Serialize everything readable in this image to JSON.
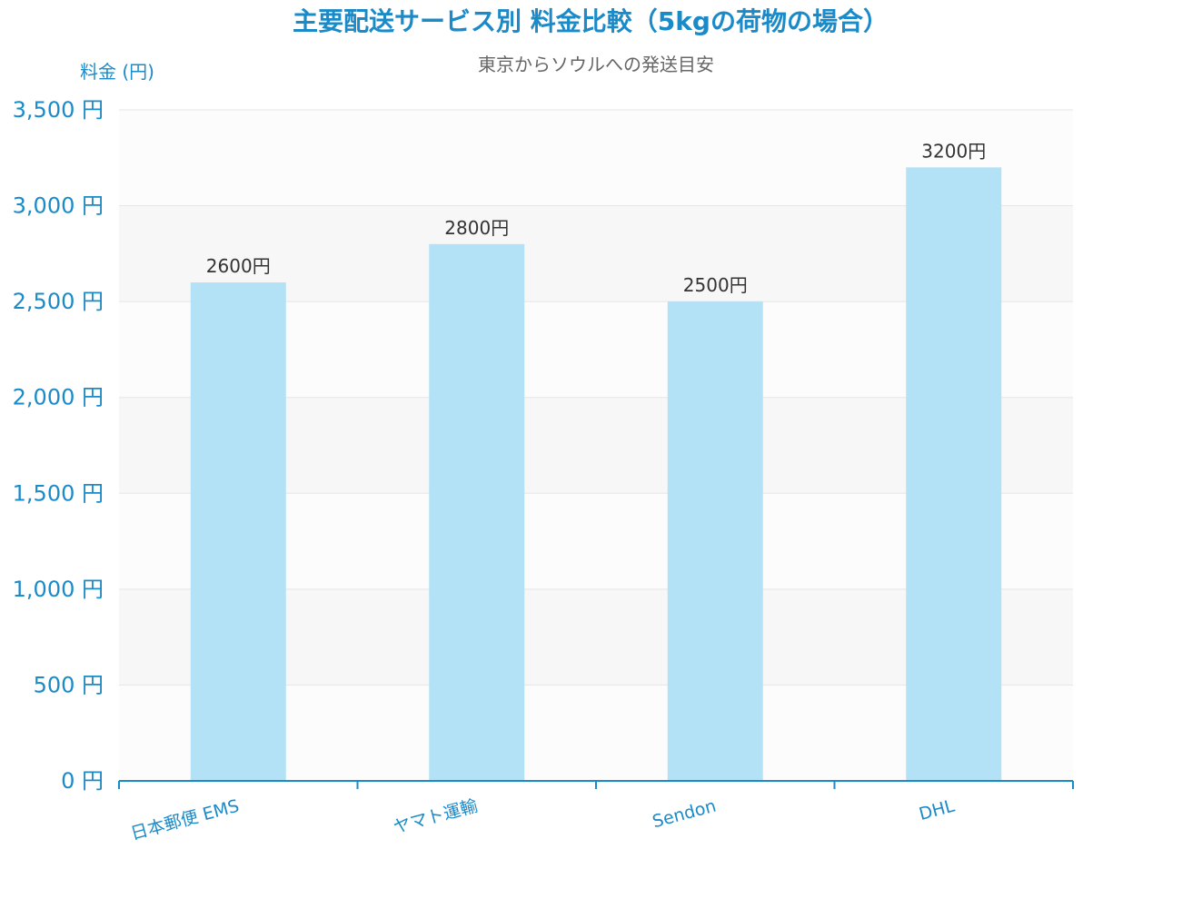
{
  "chart_data": {
    "type": "bar",
    "title": "主要配送サービス別 料金比較（5kgの荷物の場合）",
    "subtitle": "東京からソウルへの発送目安",
    "ylabel": "料金 (円)",
    "xlabel": "",
    "categories": [
      "日本郵便 EMS",
      "ヤマト運輸",
      "Sendon",
      "DHL"
    ],
    "values": [
      2600,
      2800,
      2500,
      3200
    ],
    "value_labels": [
      "2600円",
      "2800円",
      "2500円",
      "3200円"
    ],
    "ylim": [
      0,
      3500
    ],
    "yticks": [
      0,
      500,
      1000,
      1500,
      2000,
      2500,
      3000,
      3500
    ],
    "ytick_labels": [
      "0 円",
      "500 円",
      "1,000 円",
      "1,500 円",
      "2,000 円",
      "2,500 円",
      "3,000 円",
      "3,500 円"
    ],
    "grid": true,
    "alternating_bands": true,
    "colors": {
      "bar": "#b3e1f5",
      "text_accent": "#1a8ac8",
      "subtitle": "#666666",
      "data_label": "#333333",
      "grid": "#e6e6e6",
      "band": "#f7f7f7",
      "plot_bg": "#fcfcfc",
      "axis": "#1a8ac8"
    }
  }
}
